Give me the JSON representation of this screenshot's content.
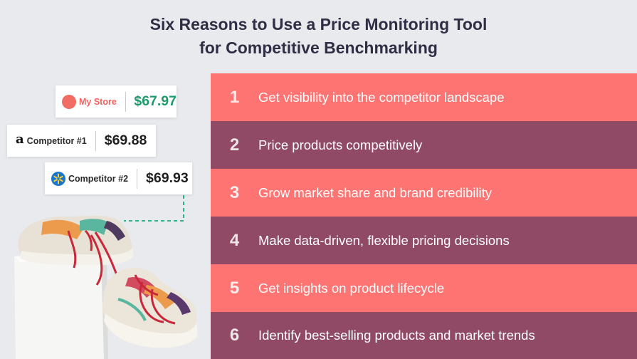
{
  "title": {
    "line1": "Six Reasons to Use a Price Monitoring Tool",
    "line2": "for Competitive Benchmarking"
  },
  "cards": [
    {
      "brand": "My Store",
      "price": "$67.97",
      "icon": "store-dot-icon"
    },
    {
      "brand": "Competitor #1",
      "price": "$69.88",
      "icon": "amazon-logo-icon"
    },
    {
      "brand": "Competitor #2",
      "price": "$69.93",
      "icon": "walmart-spark-icon"
    }
  ],
  "reasons": [
    {
      "num": "1",
      "text": "Get visibility into the competitor landscape"
    },
    {
      "num": "2",
      "text": "Price products competitively"
    },
    {
      "num": "3",
      "text": "Grow market share and brand credibility"
    },
    {
      "num": "4",
      "text": "Make data-driven, flexible pricing decisions"
    },
    {
      "num": "5",
      "text": "Get insights on product lifecycle"
    },
    {
      "num": "6",
      "text": "Identify best-selling products and market trends"
    }
  ],
  "colors": {
    "coral": "#fd7472",
    "plum": "#904a65",
    "title": "#2f2e45",
    "mystore_price": "#1e9b6b",
    "connector": "#2bb58a"
  },
  "amazon_glyph": "a"
}
